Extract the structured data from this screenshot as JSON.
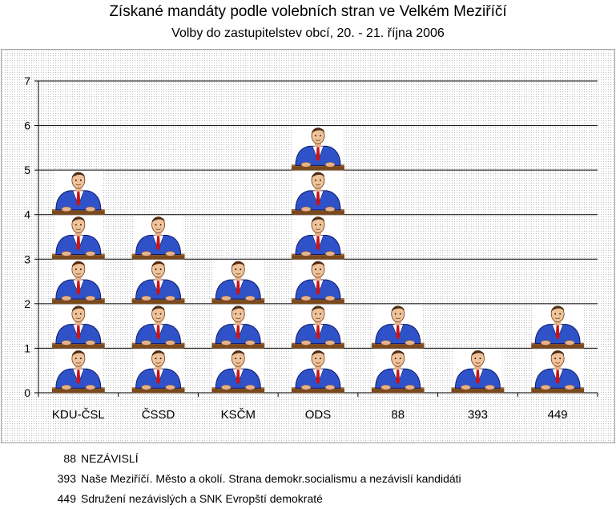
{
  "chart_data": {
    "type": "bar",
    "title": "Získané mandáty podle volebních stran ve Velkém Meziříčí",
    "subtitle": "Volby do zastupitelstev obcí, 20. - 21. října 2006",
    "categories": [
      "KDU-ČSL",
      "ČSSD",
      "KSČM",
      "ODS",
      "88",
      "393",
      "449"
    ],
    "values": [
      5,
      4,
      3,
      6,
      2,
      1,
      2
    ],
    "ylim": [
      0,
      7
    ],
    "yticks": [
      "0",
      "1",
      "2",
      "3",
      "4",
      "5",
      "6",
      "7"
    ],
    "grid": true,
    "marker": "pictograph-person-icon"
  },
  "notes": [
    {
      "key": "88",
      "text": "NEZÁVISLÍ"
    },
    {
      "key": "393",
      "text": "Naše Meziříčí. Město a okolí. Strana demokr.socialismu a nezávislí kandidáti"
    },
    {
      "key": "449",
      "text": "Sdružení nezávislých a SNK Evropští demokraté"
    }
  ]
}
